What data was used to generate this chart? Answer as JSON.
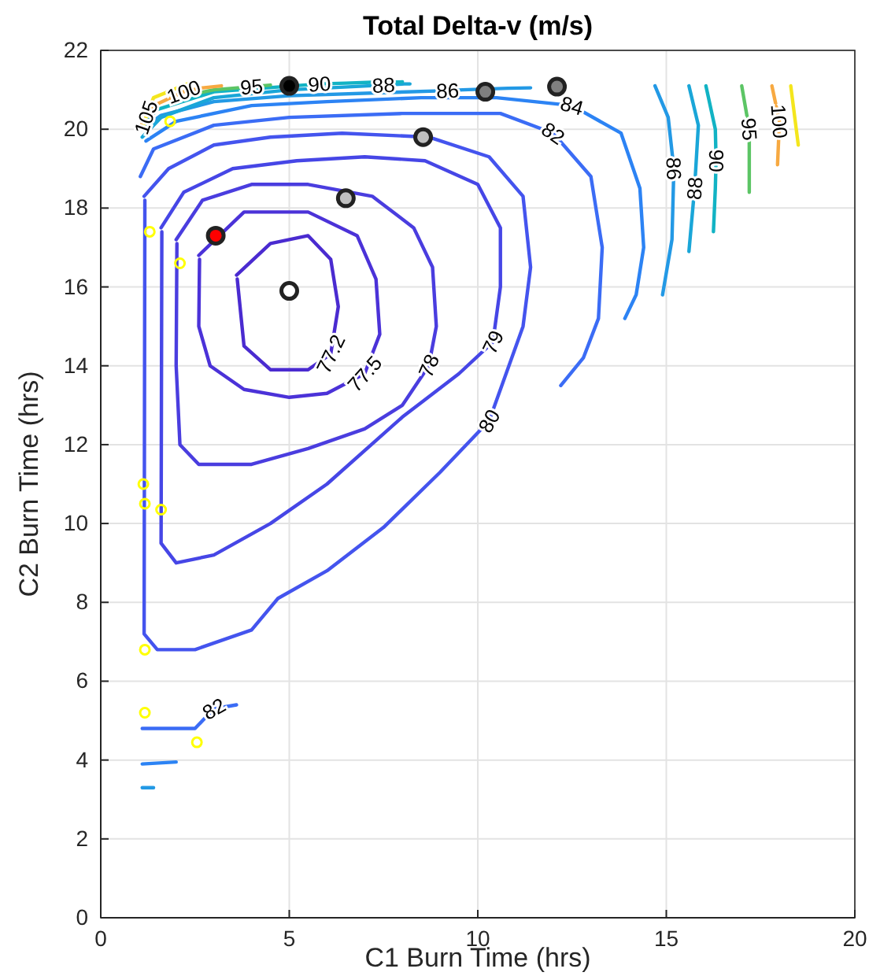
{
  "chart_data": {
    "type": "line",
    "title": "Total Delta-v (m/s)",
    "xlabel": "C1 Burn Time (hrs)",
    "ylabel": "C2 Burn Time (hrs)",
    "xlim": [
      0,
      20
    ],
    "xticks": [
      0,
      5,
      10,
      15,
      20
    ],
    "ylim": [
      0,
      22
    ],
    "yticks": [
      0,
      2,
      4,
      6,
      8,
      10,
      12,
      14,
      16,
      18,
      20,
      22
    ],
    "grid": true,
    "line_style": "solid",
    "series": [
      {
        "name": "77.2",
        "color": "#4a2bd0",
        "x": [
          3.6,
          4.5,
          5.5,
          6.1,
          6.3,
          6.1,
          5.5,
          4.5,
          3.8,
          3.62
        ],
        "values": [
          16.3,
          17.1,
          17.3,
          16.7,
          15.5,
          14.3,
          13.9,
          13.9,
          14.5,
          16.2
        ]
      },
      {
        "name": "77.5",
        "color": "#4b32d8",
        "x": [
          2.6,
          3.8,
          5.5,
          6.8,
          7.3,
          7.4,
          7,
          6,
          5,
          3.8,
          2.9,
          2.6,
          2.62
        ],
        "values": [
          16.8,
          17.9,
          17.9,
          17.3,
          16.2,
          14.8,
          13.8,
          13.3,
          13.2,
          13.4,
          14,
          15,
          16.7
        ]
      },
      {
        "name": "78",
        "color": "#4a3ddf",
        "x": [
          2.0,
          2.7,
          4,
          5.5,
          7.2,
          8.3,
          8.8,
          8.9,
          8.7,
          8,
          7,
          5.5,
          4,
          2.6,
          2.1,
          2.0,
          2.02
        ],
        "values": [
          17.2,
          18.2,
          18.6,
          18.6,
          18.3,
          17.5,
          16.5,
          15,
          14,
          13,
          12.4,
          11.9,
          11.5,
          11.5,
          12,
          14,
          17.1
        ]
      },
      {
        "name": "79",
        "color": "#4646e6",
        "x": [
          1.6,
          2.2,
          3.5,
          5.2,
          7,
          8.6,
          10,
          10.6,
          10.6,
          10.4,
          9.5,
          8,
          6,
          4.5,
          3,
          2,
          1.6,
          1.62
        ],
        "values": [
          17.5,
          18.4,
          19,
          19.2,
          19.3,
          19.2,
          18.6,
          17.5,
          16,
          14.6,
          13.8,
          12.7,
          11,
          10,
          9.2,
          9,
          9.5,
          17.4
        ]
      },
      {
        "name": "80",
        "color": "#4454ee",
        "x": [
          1.15,
          1.8,
          3,
          4.5,
          6.4,
          8.7,
          10.3,
          11.2,
          11.4,
          11.2,
          10.3,
          9,
          7.5,
          6,
          4.7,
          4,
          2.5,
          1.5,
          1.15,
          1.17
        ],
        "values": [
          18.3,
          19,
          19.6,
          19.8,
          19.9,
          19.8,
          19.3,
          18.3,
          16.5,
          15,
          12.6,
          11.3,
          9.9,
          8.8,
          8.1,
          7.3,
          6.8,
          6.8,
          7.2,
          18.2
        ]
      },
      {
        "name": "82",
        "color": "#3b6cf5",
        "x": [
          1.05,
          1.4,
          3,
          5,
          8,
          10.6,
          12,
          13,
          13.3,
          13.2,
          12.8,
          12.2
        ],
        "values": [
          18.8,
          19.5,
          20.1,
          20.3,
          20.4,
          20.4,
          19.9,
          18.8,
          17,
          15.2,
          14.2,
          13.5
        ]
      },
      {
        "name": "82",
        "color": "#3b6cf5",
        "x": [
          1.1,
          2.5,
          3.0,
          3.6
        ],
        "values": [
          4.8,
          4.8,
          5.3,
          5.4
        ]
      },
      {
        "name": "84",
        "color": "#2c83f4",
        "x": [
          1.2,
          2,
          4,
          6,
          8.5,
          10.5,
          12.5,
          13.8,
          14.3,
          14.4,
          14.2,
          13.9
        ],
        "values": [
          19.7,
          20.2,
          20.6,
          20.7,
          20.8,
          20.8,
          20.6,
          19.9,
          18.5,
          17,
          15.8,
          15.2
        ]
      },
      {
        "color": "#2c83f4",
        "x": [
          1.1,
          2.0
        ],
        "values": [
          3.9,
          3.95
        ]
      },
      {
        "name": "86",
        "color": "#2399e5",
        "x": [
          1.1,
          1.6,
          3,
          5,
          9.2,
          9.6,
          10.2,
          10.8,
          11.4
        ],
        "values": [
          20.0,
          20.35,
          20.7,
          20.85,
          20.98,
          21.0,
          21.02,
          21.04,
          21.05
        ]
      },
      {
        "name": "86",
        "color": "#2399e5",
        "x": [
          14.7,
          15.05,
          15.2,
          15.15,
          14.9
        ],
        "values": [
          21.1,
          20.3,
          19,
          17.2,
          15.8
        ]
      },
      {
        "color": "#2399e5",
        "x": [
          1.1,
          1.4
        ],
        "values": [
          3.3,
          3.3
        ]
      },
      {
        "name": "88",
        "color": "#1aa6d8",
        "x": [
          1.1,
          1.6,
          3,
          5,
          7.5,
          7.7,
          7.9,
          8.05,
          8.2
        ],
        "values": [
          19.8,
          20.3,
          20.8,
          21.0,
          21.12,
          21.13,
          21.14,
          21.15,
          21.15
        ]
      },
      {
        "name": "88",
        "color": "#1aa6d8",
        "x": [
          15.6,
          15.85,
          15.75,
          15.6
        ],
        "values": [
          21.1,
          20.1,
          18.5,
          16.9
        ]
      },
      {
        "name": "90",
        "color": "#12b3c4",
        "x": [
          1.0,
          1.5,
          3,
          5.8,
          6.5,
          7.2,
          8
        ],
        "values": [
          20.0,
          20.5,
          20.95,
          21.15,
          21.17,
          21.19,
          21.2
        ]
      },
      {
        "name": "90",
        "color": "#12b3c4",
        "x": [
          16.05,
          16.3,
          16.32,
          16.3,
          16.25
        ],
        "values": [
          21.1,
          20,
          19.2,
          18.5,
          17.4
        ]
      },
      {
        "name": "95",
        "color": "#5cc565",
        "x": [
          2.5,
          3.0,
          4.0,
          4.5
        ],
        "values": [
          20.9,
          21.0,
          21.08,
          21.12
        ]
      },
      {
        "name": "95",
        "color": "#5cc565",
        "x": [
          17.0,
          17.2,
          17.2
        ],
        "values": [
          21.1,
          20,
          18.4
        ]
      },
      {
        "name": "100",
        "color": "#f7a941",
        "x": [
          1.0,
          1.4,
          2.2,
          2.7,
          3.2
        ],
        "values": [
          20.0,
          20.6,
          20.95,
          21.05,
          21.1
        ]
      },
      {
        "name": "100",
        "color": "#f7a941",
        "x": [
          17.8,
          18.0,
          17.95
        ],
        "values": [
          21.1,
          20.2,
          19.1
        ]
      },
      {
        "name": "105",
        "color": "#f4e61d",
        "x": [
          1.12,
          1.15,
          1.2,
          1.4,
          2.3
        ],
        "values": [
          20.0,
          20.1,
          20.3,
          20.8,
          21.15
        ]
      },
      {
        "color": "#f4e61d",
        "x": [
          18.3,
          18.5
        ],
        "values": [
          21.1,
          19.6
        ]
      },
      {
        "type": "scatter",
        "marker": "circle",
        "color": "#000000",
        "x": [
          5.0
        ],
        "values": [
          21.1
        ]
      },
      {
        "type": "scatter",
        "marker": "circle",
        "color": "#808080",
        "x": [
          10.2,
          12.1
        ],
        "values": [
          20.95,
          21.08
        ]
      },
      {
        "type": "scatter",
        "marker": "circle",
        "color": "#c0c0c0",
        "x": [
          8.55,
          6.5
        ],
        "values": [
          19.8,
          18.25
        ]
      },
      {
        "type": "scatter",
        "marker": "circle",
        "color": "#ffffff",
        "x": [
          5.0
        ],
        "values": [
          15.9
        ]
      },
      {
        "type": "scatter",
        "marker": "circle",
        "color": "#ff0000",
        "x": [
          3.05
        ],
        "values": [
          17.3
        ]
      },
      {
        "type": "scatter",
        "marker": "circle",
        "color": "#ffff00",
        "x": [
          1.3,
          2.1,
          1.13,
          1.17,
          1.6,
          1.17,
          1.17,
          2.55,
          1.84
        ],
        "values": [
          17.4,
          16.6,
          11.0,
          10.5,
          10.35,
          6.8,
          5.2,
          4.45,
          20.2
        ]
      }
    ]
  }
}
